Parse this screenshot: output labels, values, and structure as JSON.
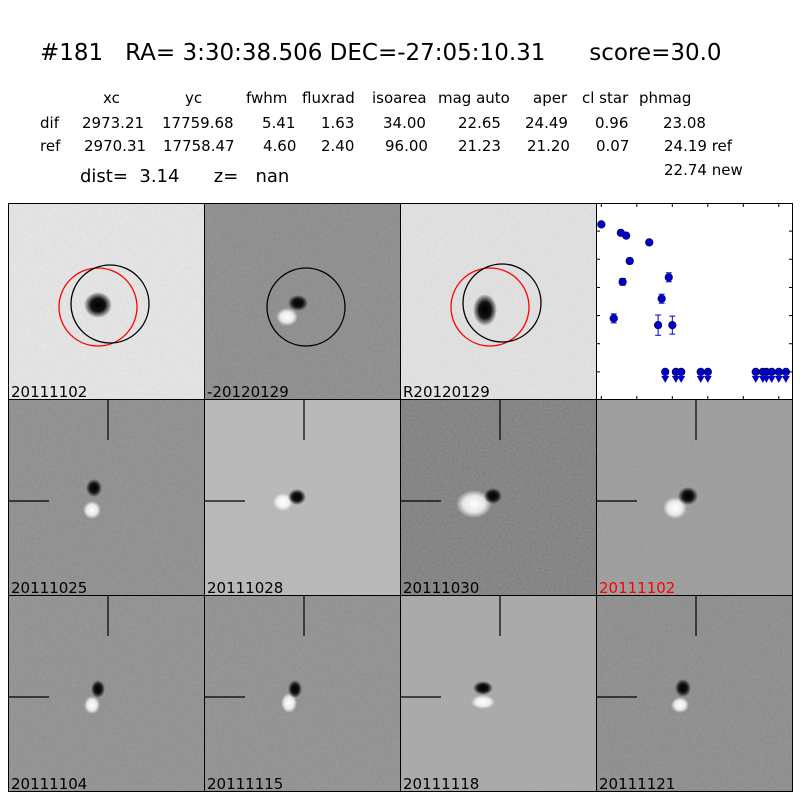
{
  "header": {
    "title": "#181   RA= 3:30:38.506 DEC=-27:05:10.31      score=30.0",
    "columns": [
      "xc",
      "yc",
      "fwhm",
      "fluxrad",
      "isoarea",
      "mag auto",
      "aper",
      "cl star",
      "phmag"
    ],
    "rows": [
      {
        "label": "dif",
        "values": [
          "2973.21",
          "17759.68",
          "5.41",
          "1.63",
          "34.00",
          "22.65",
          "24.49",
          "0.96",
          "23.08"
        ]
      },
      {
        "label": "ref",
        "values": [
          "2970.31",
          "17758.47",
          "4.60",
          "2.40",
          "96.00",
          "21.23",
          "21.20",
          "0.07",
          "24.19 ref"
        ]
      }
    ],
    "new_mag": "22.74 new",
    "dist_line": "dist=  3.14      z=   nan"
  },
  "panels": {
    "top": [
      "20111102",
      "-20120129",
      "R20120129"
    ],
    "middle": [
      "20111025",
      "20111028",
      "20111030",
      "20111102"
    ],
    "bottom": [
      "20111104",
      "20111115",
      "20111118",
      "20111121"
    ],
    "highlight_color": "#ff0000"
  },
  "chart_data": {
    "type": "scatter",
    "title": "",
    "xlabel": "",
    "ylabel": "",
    "xlim": [
      -3,
      108
    ],
    "ylim": [
      26.0,
      22.5
    ],
    "y_inverted": true,
    "x_ticks": [
      "0",
      "20",
      "40",
      "60",
      "80",
      "100"
    ],
    "y_ticks": [
      "22.5",
      "23.0",
      "23.5",
      "24.0",
      "24.5",
      "25.0",
      "25.5",
      "26.0"
    ],
    "color": "#0000cc",
    "detections": [
      {
        "x": 0,
        "y": 22.88,
        "err": 0.03
      },
      {
        "x": 7,
        "y": 24.55,
        "err": 0.08
      },
      {
        "x": 11,
        "y": 23.03,
        "err": 0.04
      },
      {
        "x": 12,
        "y": 23.9,
        "err": 0.06
      },
      {
        "x": 14,
        "y": 23.08,
        "err": 0.04
      },
      {
        "x": 16,
        "y": 23.53,
        "err": 0.05
      },
      {
        "x": 27,
        "y": 23.2,
        "err": 0.04
      },
      {
        "x": 32,
        "y": 24.67,
        "err": 0.18
      },
      {
        "x": 34,
        "y": 24.2,
        "err": 0.08
      },
      {
        "x": 38,
        "y": 23.82,
        "err": 0.08
      },
      {
        "x": 40,
        "y": 24.67,
        "err": 0.16
      }
    ],
    "upper_limits": [
      {
        "x": 36,
        "y": 25.5
      },
      {
        "x": 42,
        "y": 25.5
      },
      {
        "x": 45,
        "y": 25.5
      },
      {
        "x": 56,
        "y": 25.5
      },
      {
        "x": 60,
        "y": 25.5
      },
      {
        "x": 87,
        "y": 25.5
      },
      {
        "x": 91,
        "y": 25.5
      },
      {
        "x": 93,
        "y": 25.5
      },
      {
        "x": 96,
        "y": 25.5
      },
      {
        "x": 100,
        "y": 25.5
      },
      {
        "x": 104,
        "y": 25.5
      }
    ]
  }
}
